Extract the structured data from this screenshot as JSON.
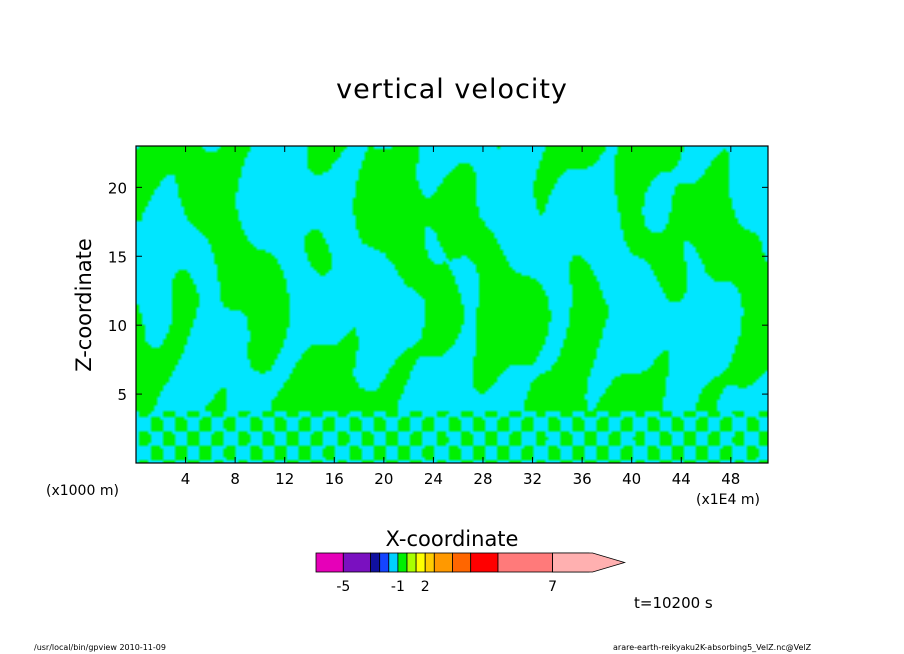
{
  "chart_data": {
    "type": "heatmap",
    "title": "vertical velocity",
    "xlabel": "X-coordinate",
    "ylabel": "Z-coordinate",
    "x_unit_left": "(x1000 m)",
    "x_unit_right": "(x1E4 m)",
    "x_ticks": [
      "4",
      "8",
      "12",
      "16",
      "20",
      "24",
      "28",
      "32",
      "36",
      "40",
      "44",
      "48"
    ],
    "x_tick_values": [
      4,
      8,
      12,
      16,
      20,
      24,
      28,
      32,
      36,
      40,
      44,
      48
    ],
    "xlim": [
      0,
      51
    ],
    "y_ticks": [
      "5",
      "10",
      "15",
      "20"
    ],
    "y_tick_values": [
      5,
      10,
      15,
      20
    ],
    "ylim": [
      0,
      23
    ],
    "colorbar": {
      "labels": [
        "-5",
        "-1",
        "2",
        "7"
      ],
      "levels": [
        "-5",
        "-4",
        "-3",
        "-2",
        "-1",
        "0",
        "1",
        "2",
        "3",
        "4",
        "5",
        "6",
        "7",
        "8",
        "9"
      ],
      "colors": [
        "#e600b8",
        "#7a10c0",
        "#1010a0",
        "#1444ff",
        "#00d0ff",
        "#00f000",
        "#a8ff00",
        "#ffff00",
        "#ffcc00",
        "#ff9900",
        "#ff6600",
        "#ff0000",
        "#ff7a7a",
        "#ffb0b0"
      ],
      "cell_counts": [
        3,
        3,
        1,
        1,
        1,
        1,
        1,
        1,
        1,
        2,
        2,
        3,
        6,
        4
      ]
    },
    "field_colors": [
      "#00e6ff",
      "#00f000"
    ],
    "grid": false
  },
  "time_label": "t=10200 s",
  "footer": {
    "left": "/usr/local/bin/gpview   2010-11-09",
    "right": "arare-earth-reikyaku2K-absorbing5_VelZ.nc@VelZ"
  }
}
